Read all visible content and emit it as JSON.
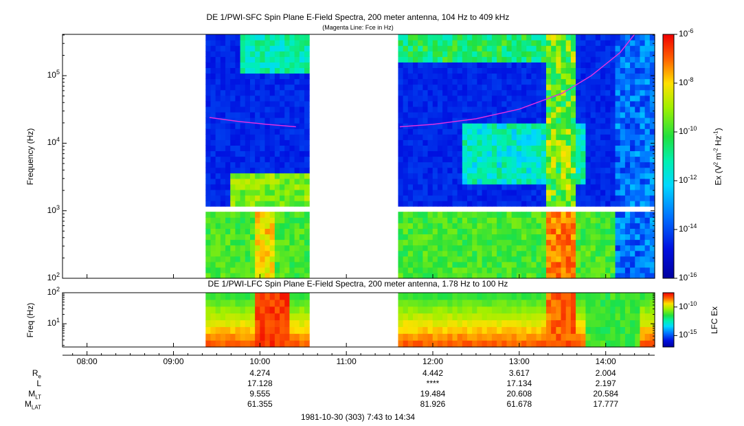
{
  "chart_data": [
    {
      "type": "heatmap",
      "title": "DE 1/PWI-SFC  Spin Plane E-Field Spectra, 200 meter antenna, 104 Hz to 409 kHz",
      "subtitle": "(Magenta Line: Fce in Hz)",
      "ylabel": "Frequency (Hz)",
      "yscale": "log",
      "ylim": [
        100,
        409000
      ],
      "yticks": [
        {
          "base": "10",
          "exp": "2"
        },
        {
          "base": "10",
          "exp": "3"
        },
        {
          "base": "10",
          "exp": "4"
        },
        {
          "base": "10",
          "exp": "5"
        }
      ],
      "data_gaps_utc": [
        [
          "07:43",
          "09:23"
        ],
        [
          "10:33",
          "11:37"
        ]
      ],
      "colorbar": {
        "label": "Ex (V",
        "label_sup1": "2",
        "label_mid": " m",
        "label_sup2": "-2",
        "label_mid2": " Hz",
        "label_sup3": "-1",
        "label_end": ")",
        "scale": "log",
        "range": [
          1e-16,
          1e-06
        ],
        "ticks": [
          {
            "base": "10",
            "exp": "-6"
          },
          {
            "base": "10",
            "exp": "-8"
          },
          {
            "base": "10",
            "exp": "-10"
          },
          {
            "base": "10",
            "exp": "-12"
          },
          {
            "base": "10",
            "exp": "-14"
          },
          {
            "base": "10",
            "exp": "-16"
          }
        ]
      },
      "series": [
        {
          "name": "Fce (Hz)",
          "color": "#e030e0",
          "points": [
            {
              "t": "09:25",
              "f": 24000
            },
            {
              "t": "09:45",
              "f": 21000
            },
            {
              "t": "10:05",
              "f": 19000
            },
            {
              "t": "10:25",
              "f": 17500
            },
            {
              "t": "11:37",
              "f": 17500
            },
            {
              "t": "12:00",
              "f": 19000
            },
            {
              "t": "12:30",
              "f": 23000
            },
            {
              "t": "13:00",
              "f": 32000
            },
            {
              "t": "13:30",
              "f": 55000
            },
            {
              "t": "13:50",
              "f": 100000
            },
            {
              "t": "14:10",
              "f": 220000
            },
            {
              "t": "14:20",
              "f": 409000
            }
          ]
        }
      ]
    },
    {
      "type": "heatmap",
      "title": "DE 1/PWI-LFC  Spin Plane E-Field Spectra, 200 meter antenna, 1.78 Hz to 100 Hz",
      "ylabel": "Freq (Hz)",
      "yscale": "log",
      "ylim": [
        1.78,
        100
      ],
      "yticks": [
        {
          "base": "10",
          "exp": "2"
        },
        {
          "base": "10",
          "exp": "1"
        }
      ],
      "data_gaps_utc": [
        [
          "07:43",
          "09:23"
        ],
        [
          "10:33",
          "11:37"
        ]
      ],
      "colorbar": {
        "label": "LFC Ex",
        "scale": "log",
        "ticks": [
          {
            "base": "10",
            "exp": "-10"
          },
          {
            "base": "10",
            "exp": "-15"
          }
        ]
      }
    }
  ],
  "time_axis": {
    "ticks": [
      "08:00",
      "09:00",
      "10:00",
      "11:00",
      "12:00",
      "13:00",
      "14:00"
    ]
  },
  "ephemeris": {
    "rows": [
      {
        "label": "R",
        "sub": "e",
        "values": [
          "4.274",
          "4.442",
          "3.617",
          "2.004"
        ]
      },
      {
        "label": "L",
        "sub": "",
        "values": [
          "17.128",
          "****",
          "17.134",
          "2.197"
        ]
      },
      {
        "label": "M",
        "sub": "LT",
        "values": [
          "9.555",
          "19.484",
          "20.608",
          "20.584"
        ]
      },
      {
        "label": "M",
        "sub": "LAT",
        "values": [
          "61.355",
          "81.926",
          "61.678",
          "17.777"
        ]
      }
    ],
    "columns": [
      "10:00",
      "12:00",
      "13:00",
      "14:00"
    ]
  },
  "footer": "1981-10-30 (303) 7:43 to 14:34"
}
